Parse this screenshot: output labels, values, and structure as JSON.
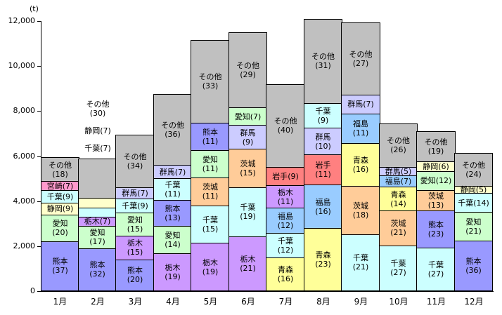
{
  "y_axis": {
    "unit_label": "(t)",
    "tick_values": [
      0,
      2000,
      4000,
      6000,
      8000,
      10000,
      12000
    ],
    "tick_labels": [
      "0",
      "2,000",
      "4,000",
      "6,000",
      "8,000",
      "10,000",
      "12,000"
    ],
    "max": 12000
  },
  "colors": {
    "熊本": "#9999FF",
    "愛知": "#CCFFCC",
    "静岡": "#FFFFCC",
    "千葉": "#CCFFFF",
    "宮崎": "#FF99CC",
    "栃木": "#CC99FF",
    "群馬": "#CCCCFF",
    "茨城": "#FFCC99",
    "岩手": "#FF8080",
    "福島": "#99CCFF",
    "青森": "#FFFF99",
    "その他": "#C0C0C0"
  },
  "chart_data": {
    "type": "bar",
    "stacked": true,
    "title": "",
    "xlabel": "",
    "ylabel": "(t)",
    "ylim": [
      0,
      12000
    ],
    "grid": false,
    "legend": "none (labels inside segments)",
    "categories": [
      "1月",
      "2月",
      "3月",
      "4月",
      "5月",
      "6月",
      "7月",
      "8月",
      "9月",
      "10月",
      "11月",
      "12月"
    ],
    "months": [
      {
        "month": "1月",
        "total_t": 5950,
        "segments": [
          {
            "name": "熊本",
            "pct": 37
          },
          {
            "name": "愛知",
            "pct": 20
          },
          {
            "name": "静岡",
            "pct": 9
          },
          {
            "name": "千葉",
            "pct": 9
          },
          {
            "name": "宮崎",
            "pct": 7
          },
          {
            "name": "その他",
            "pct": 18
          }
        ]
      },
      {
        "month": "2月",
        "total_t": 5900,
        "segments": [
          {
            "name": "熊本",
            "pct": 32
          },
          {
            "name": "愛知",
            "pct": 17
          },
          {
            "name": "栃木",
            "pct": 7
          },
          {
            "name": "千葉",
            "pct": 7,
            "label_outside": true
          },
          {
            "name": "静岡",
            "pct": 7,
            "label_outside": true
          },
          {
            "name": "その他",
            "pct": 30,
            "label_outside": true
          }
        ]
      },
      {
        "month": "3月",
        "total_t": 6950,
        "segments": [
          {
            "name": "熊本",
            "pct": 20
          },
          {
            "name": "栃木",
            "pct": 15
          },
          {
            "name": "愛知",
            "pct": 15
          },
          {
            "name": "千葉",
            "pct": 9
          },
          {
            "name": "群馬",
            "pct": 7
          },
          {
            "name": "その他",
            "pct": 34
          }
        ]
      },
      {
        "month": "4月",
        "total_t": 8750,
        "segments": [
          {
            "name": "栃木",
            "pct": 19
          },
          {
            "name": "愛知",
            "pct": 14
          },
          {
            "name": "熊本",
            "pct": 13
          },
          {
            "name": "千葉",
            "pct": 11
          },
          {
            "name": "群馬",
            "pct": 7
          },
          {
            "name": "その他",
            "pct": 36
          }
        ]
      },
      {
        "month": "5月",
        "total_t": 11150,
        "segments": [
          {
            "name": "栃木",
            "pct": 19
          },
          {
            "name": "千葉",
            "pct": 15
          },
          {
            "name": "茨城",
            "pct": 11
          },
          {
            "name": "愛知",
            "pct": 11
          },
          {
            "name": "熊本",
            "pct": 11
          },
          {
            "name": "その他",
            "pct": 33
          }
        ]
      },
      {
        "month": "6月",
        "total_t": 11500,
        "segments": [
          {
            "name": "栃木",
            "pct": 21
          },
          {
            "name": "千葉",
            "pct": 19
          },
          {
            "name": "茨城",
            "pct": 15
          },
          {
            "name": "群馬",
            "pct": 9
          },
          {
            "name": "愛知",
            "pct": 7
          },
          {
            "name": "その他",
            "pct": 29
          }
        ]
      },
      {
        "month": "7月",
        "total_t": 9200,
        "segments": [
          {
            "name": "青森",
            "pct": 16
          },
          {
            "name": "千葉",
            "pct": 12
          },
          {
            "name": "福島",
            "pct": 12
          },
          {
            "name": "栃木",
            "pct": 11
          },
          {
            "name": "岩手",
            "pct": 9
          },
          {
            "name": "その他",
            "pct": 40
          }
        ]
      },
      {
        "month": "8月",
        "total_t": 12100,
        "segments": [
          {
            "name": "青森",
            "pct": 23
          },
          {
            "name": "福島",
            "pct": 16
          },
          {
            "name": "岩手",
            "pct": 11
          },
          {
            "name": "群馬",
            "pct": 10
          },
          {
            "name": "千葉",
            "pct": 9
          },
          {
            "name": "その他",
            "pct": 31
          }
        ]
      },
      {
        "month": "9月",
        "total_t": 11950,
        "segments": [
          {
            "name": "千葉",
            "pct": 21
          },
          {
            "name": "茨城",
            "pct": 18
          },
          {
            "name": "青森",
            "pct": 16
          },
          {
            "name": "福島",
            "pct": 11
          },
          {
            "name": "群馬",
            "pct": 7
          },
          {
            "name": "その他",
            "pct": 27
          }
        ]
      },
      {
        "month": "10月",
        "total_t": 7450,
        "segments": [
          {
            "name": "千葉",
            "pct": 27
          },
          {
            "name": "茨城",
            "pct": 21
          },
          {
            "name": "青森",
            "pct": 14
          },
          {
            "name": "福島",
            "pct": 7
          },
          {
            "name": "群馬",
            "pct": 5
          },
          {
            "name": "その他",
            "pct": 26
          }
        ]
      },
      {
        "month": "11月",
        "total_t": 7100,
        "segments": [
          {
            "name": "千葉",
            "pct": 27
          },
          {
            "name": "熊本",
            "pct": 23
          },
          {
            "name": "茨城",
            "pct": 13
          },
          {
            "name": "愛知",
            "pct": 12
          },
          {
            "name": "静岡",
            "pct": 6
          },
          {
            "name": "その他",
            "pct": 19
          }
        ]
      },
      {
        "month": "12月",
        "total_t": 6150,
        "segments": [
          {
            "name": "熊本",
            "pct": 36
          },
          {
            "name": "愛知",
            "pct": 21
          },
          {
            "name": "千葉",
            "pct": 14
          },
          {
            "name": "静岡",
            "pct": 5
          },
          {
            "name": "その他",
            "pct": 24
          }
        ]
      }
    ]
  }
}
